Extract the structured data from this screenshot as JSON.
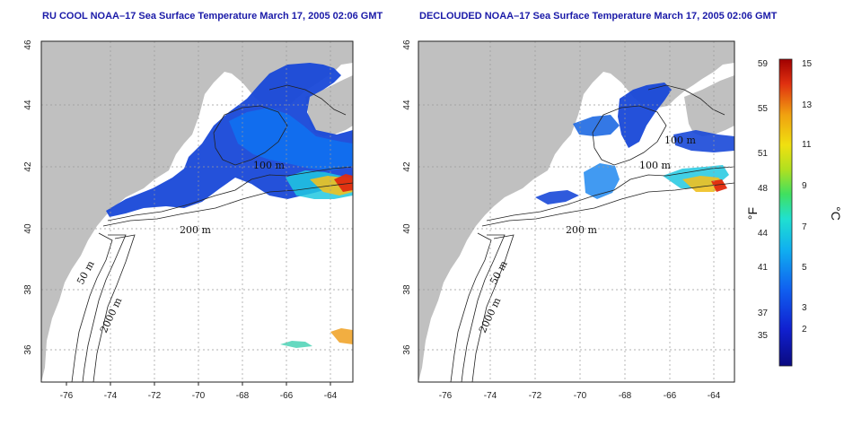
{
  "titles": {
    "left": "RU COOL NOAA–17 Sea Surface Temperature March 17, 2005 02:06 GMT",
    "right": "DECLOUDED NOAA–17 Sea Surface Temperature March 17, 2005 02:06 GMT"
  },
  "axes": {
    "lon_ticks": [
      "-76",
      "-74",
      "-72",
      "-70",
      "-68",
      "-66",
      "-64"
    ],
    "lat_ticks": [
      "36",
      "38",
      "40",
      "42",
      "44",
      "46"
    ]
  },
  "contour_labels": {
    "left": [
      "200 m",
      "50 m",
      "2000 m",
      "100 m"
    ],
    "right": [
      "200 m",
      "50 m",
      "2000 m",
      "100 m",
      "100 m"
    ]
  },
  "colorbar": {
    "fahrenheit_ticks": [
      "59",
      "55",
      "51",
      "48",
      "44",
      "41",
      "37",
      "35"
    ],
    "celsius_ticks": [
      "15",
      "13",
      "11",
      "9",
      "7",
      "5",
      "3",
      "2"
    ],
    "fahrenheit_unit": "°F",
    "celsius_unit": "°C"
  },
  "colors": {
    "title": "#1a1aa8",
    "land": "#c0c0c0",
    "ocean": "#ffffff",
    "sst_cold": "#1030c8",
    "sst_warm": "#e01010"
  }
}
